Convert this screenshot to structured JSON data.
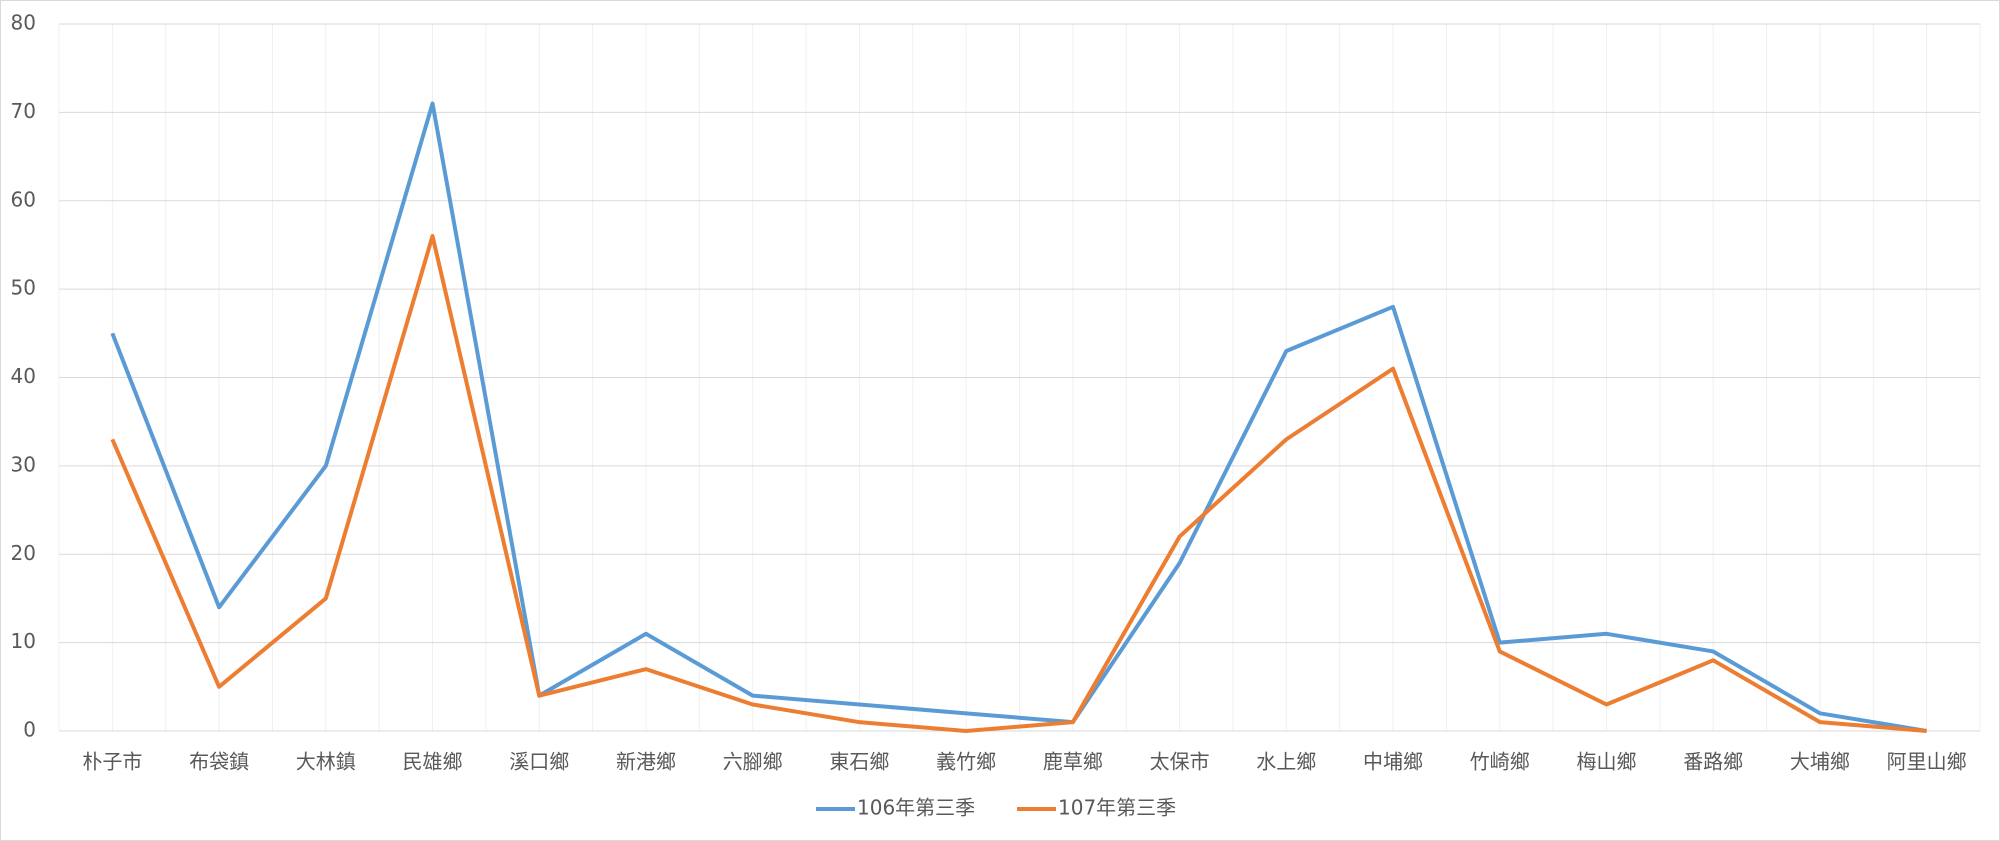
{
  "chart_data": {
    "type": "line",
    "categories": [
      "朴子市",
      "布袋鎮",
      "大林鎮",
      "民雄鄉",
      "溪口鄉",
      "新港鄉",
      "六腳鄉",
      "東石鄉",
      "義竹鄉",
      "鹿草鄉",
      "太保市",
      "水上鄉",
      "中埔鄉",
      "竹崎鄉",
      "梅山鄉",
      "番路鄉",
      "大埔鄉",
      "阿里山鄉"
    ],
    "series": [
      {
        "name": "106年第三季",
        "color": "#5b9bd5",
        "values": [
          45,
          14,
          30,
          71,
          4,
          11,
          4,
          3,
          2,
          1,
          19,
          43,
          48,
          10,
          11,
          9,
          2,
          0
        ]
      },
      {
        "name": "107年第三季",
        "color": "#ed7d31",
        "values": [
          33,
          5,
          15,
          56,
          4,
          7,
          3,
          1,
          0,
          1,
          22,
          33,
          41,
          9,
          3,
          8,
          1,
          0
        ]
      }
    ],
    "ylim": [
      0,
      80
    ],
    "yticks": [
      0,
      10,
      20,
      30,
      40,
      50,
      60,
      70,
      80
    ],
    "grid": true,
    "legend": "bottom"
  }
}
